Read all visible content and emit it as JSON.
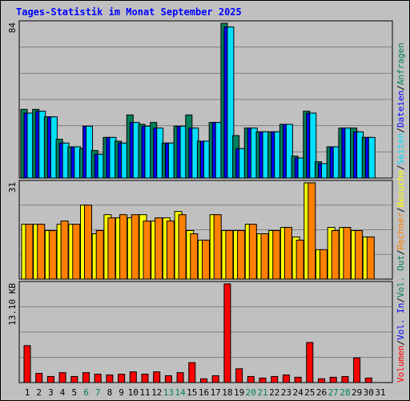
{
  "chart_data": {
    "type": "bar",
    "title": "Tages-Statistik im Monat September 2025",
    "categories": [
      "1",
      "2",
      "3",
      "4",
      "5",
      "6",
      "7",
      "8",
      "9",
      "10",
      "11",
      "12",
      "13",
      "14",
      "15",
      "16",
      "17",
      "18",
      "19",
      "20",
      "21",
      "22",
      "23",
      "24",
      "25",
      "26",
      "27",
      "28",
      "29",
      "30",
      "31"
    ],
    "weekend_days": [
      "6",
      "7",
      "13",
      "14",
      "20",
      "21",
      "27",
      "28"
    ],
    "grid": true,
    "panels": [
      {
        "name": "hits-files-pages",
        "max_label": "84",
        "ylim": [
          0,
          84
        ],
        "series": [
          {
            "name": "Anfragen",
            "color": "#00805c",
            "values": [
              38,
              38,
              34,
              22,
              18,
              17,
              16,
              23,
              21,
              35,
              30,
              31,
              20,
              29,
              35,
              21,
              31,
              84,
              24,
              28,
              26,
              26,
              30,
              13,
              37,
              10,
              18,
              28,
              28,
              23,
              0
            ]
          },
          {
            "name": "Dateien",
            "color": "#0000ff",
            "values": [
              36,
              37,
              34,
              20,
              18,
              29,
              14,
              23,
              20,
              31,
              29,
              28,
              20,
              29,
              28,
              21,
              31,
              82,
              17,
              28,
              26,
              26,
              30,
              12,
              36,
              9,
              18,
              28,
              26,
              23,
              0
            ]
          },
          {
            "name": "Seiten",
            "color": "#00e0ff",
            "values": [
              36,
              37,
              34,
              20,
              18,
              29,
              14,
              23,
              20,
              31,
              29,
              28,
              20,
              29,
              28,
              21,
              31,
              82,
              17,
              28,
              26,
              26,
              30,
              12,
              36,
              9,
              18,
              28,
              26,
              23,
              0
            ]
          }
        ]
      },
      {
        "name": "visits-sites",
        "max_label": "31",
        "ylim": [
          0,
          31
        ],
        "series": [
          {
            "name": "Besuche",
            "color": "#ffff00",
            "values": [
              18,
              18,
              16,
              18,
              18,
              24,
              15,
              21,
              20,
              20,
              21,
              19,
              20,
              22,
              16,
              13,
              21,
              16,
              16,
              18,
              15,
              16,
              17,
              14,
              31,
              10,
              17,
              17,
              16,
              14,
              0
            ]
          },
          {
            "name": "Rechner",
            "color": "#ff8000",
            "values": [
              18,
              18,
              16,
              19,
              18,
              24,
              16,
              20,
              21,
              21,
              19,
              20,
              19,
              21,
              15,
              13,
              21,
              16,
              16,
              18,
              15,
              16,
              17,
              13,
              31,
              10,
              16,
              17,
              16,
              14,
              0
            ]
          }
        ]
      },
      {
        "name": "volume",
        "max_label": "13.10 KB",
        "ylim": [
          0,
          13.1
        ],
        "series": [
          {
            "name": "Volumen",
            "color": "#ff0000",
            "values": [
              5.1,
              1.5,
              1.1,
              1.6,
              1.1,
              1.6,
              1.4,
              1.3,
              1.4,
              1.7,
              1.4,
              1.7,
              1.2,
              1.6,
              2.9,
              0.8,
              1.2,
              13.1,
              2.1,
              1.1,
              0.9,
              1.1,
              1.3,
              1.0,
              5.5,
              0.8,
              1.0,
              1.1,
              3.5,
              0.9,
              0
            ]
          }
        ]
      }
    ],
    "legend_right": [
      {
        "text": "Volumen",
        "color": "#ff0000"
      },
      {
        "text": "/",
        "color": "#000000"
      },
      {
        "text": "Vol. In",
        "color": "#0000ff"
      },
      {
        "text": "/",
        "color": "#000000"
      },
      {
        "text": "Vol. Out",
        "color": "#00805c"
      },
      {
        "text": "/",
        "color": "#000000"
      },
      {
        "text": "Rechner",
        "color": "#ff8000"
      },
      {
        "text": "/",
        "color": "#000000"
      },
      {
        "text": "Besuche",
        "color": "#ffff00"
      },
      {
        "text": "/",
        "color": "#000000"
      },
      {
        "text": "Seiten",
        "color": "#00e0ff"
      },
      {
        "text": "/",
        "color": "#000000"
      },
      {
        "text": "Dateien",
        "color": "#0000ff"
      },
      {
        "text": "/",
        "color": "#000000"
      },
      {
        "text": "Anfragen",
        "color": "#00805c"
      }
    ]
  }
}
